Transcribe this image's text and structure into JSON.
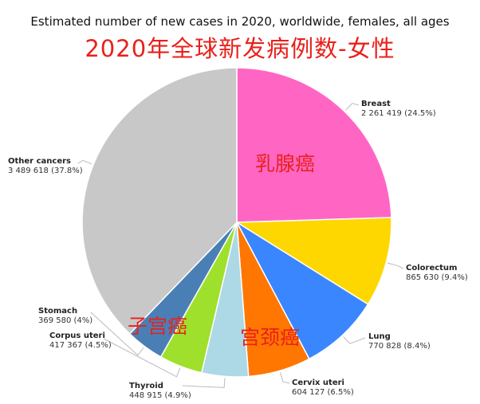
{
  "title": "Estimated number of new cases in 2020, worldwide, females, all ages",
  "overlay_title": "2020年全球新发病例数-女性",
  "colors": {
    "breast": "#ff66c4",
    "colorectum": "#ffd700",
    "lung": "#3a86ff",
    "cervix": "#ff7700",
    "thyroid": "#add8e6",
    "corpus": "#9ee02c",
    "stomach": "#4a7fb5",
    "other": "#c8c8c8",
    "annotation": "#e8211b"
  },
  "chart_data": {
    "type": "pie",
    "title": "Estimated number of new cases in 2020, worldwide, females, all ages",
    "slices": [
      {
        "name": "Breast",
        "value": 2261419,
        "percent": 24.5,
        "value_text": "2 261 419 (24.5%)",
        "color_key": "breast"
      },
      {
        "name": "Colorectum",
        "value": 865630,
        "percent": 9.4,
        "value_text": "865 630 (9.4%)",
        "color_key": "colorectum"
      },
      {
        "name": "Lung",
        "value": 770828,
        "percent": 8.4,
        "value_text": "770 828 (8.4%)",
        "color_key": "lung"
      },
      {
        "name": "Cervix uteri",
        "value": 604127,
        "percent": 6.5,
        "value_text": "604 127 (6.5%)",
        "color_key": "cervix"
      },
      {
        "name": "Thyroid",
        "value": 448915,
        "percent": 4.9,
        "value_text": "448 915 (4.9%)",
        "color_key": "thyroid"
      },
      {
        "name": "Corpus uteri",
        "value": 417367,
        "percent": 4.5,
        "value_text": "417 367 (4.5%)",
        "color_key": "corpus"
      },
      {
        "name": "Stomach",
        "value": 369580,
        "percent": 4,
        "value_text": "369 580 (4%)",
        "color_key": "stomach"
      },
      {
        "name": "Other cancers",
        "value": 3489618,
        "percent": 37.8,
        "value_text": "3 489 618 (37.8%)",
        "color_key": "other"
      }
    ],
    "annotations": [
      "乳腺癌",
      "宫颈癌",
      "子宫癌"
    ]
  }
}
